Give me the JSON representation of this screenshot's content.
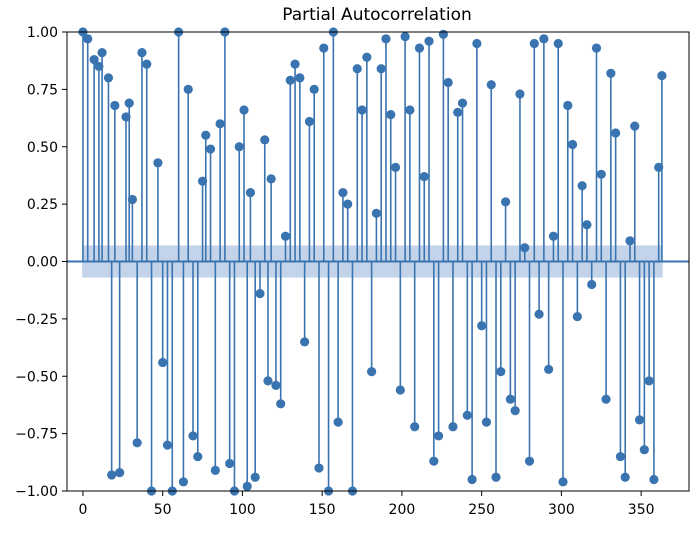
{
  "chart_data": {
    "type": "stem",
    "title": "Partial Autocorrelation",
    "xlabel": "",
    "ylabel": "",
    "xlim": [
      -10,
      380
    ],
    "ylim": [
      -1.0,
      1.0
    ],
    "x_ticks": [
      0,
      50,
      100,
      150,
      200,
      250,
      300,
      350
    ],
    "y_ticks": [
      -1.0,
      -0.75,
      -0.5,
      -0.25,
      0.0,
      0.25,
      0.5,
      0.75,
      1.0
    ],
    "x_tick_labels": [
      "0",
      "50",
      "100",
      "150",
      "200",
      "250",
      "300",
      "350"
    ],
    "y_tick_labels": [
      "−1.00",
      "−0.75",
      "−0.50",
      "−0.25",
      "0.00",
      "0.25",
      "0.50",
      "0.75",
      "1.00"
    ],
    "confidence_band": 0.07,
    "series": [
      {
        "x": [
          0,
          3,
          7,
          10,
          12,
          16,
          18,
          20,
          23,
          27,
          29,
          31,
          34,
          37,
          40,
          43,
          47,
          50,
          53,
          56,
          60,
          63,
          66,
          69,
          72,
          75,
          77,
          80,
          83,
          86,
          89,
          92,
          95,
          98,
          101,
          103,
          105,
          108,
          111,
          114,
          116,
          118,
          121,
          124,
          127,
          130,
          133,
          136,
          139,
          142,
          145,
          148,
          151,
          154,
          157,
          160,
          163,
          166,
          169,
          172,
          175,
          178,
          181,
          184,
          187,
          190,
          193,
          196,
          199,
          202,
          205,
          208,
          211,
          214,
          217,
          220,
          223,
          226,
          229,
          232,
          235,
          238,
          241,
          244,
          247,
          250,
          253,
          256,
          259,
          262,
          265,
          268,
          271,
          274,
          277,
          280,
          283,
          286,
          289,
          292,
          295,
          298,
          301,
          304,
          307,
          310,
          313,
          316,
          319,
          322,
          325,
          328,
          331,
          334,
          337,
          340,
          343,
          346,
          349,
          352,
          355,
          358,
          361,
          363
        ],
        "values": [
          1.0,
          0.97,
          0.88,
          0.85,
          0.91,
          0.8,
          -0.93,
          0.68,
          -0.92,
          0.63,
          0.69,
          0.27,
          -0.79,
          0.91,
          0.86,
          -1.0,
          0.43,
          -0.44,
          -0.8,
          -1.0,
          1.0,
          -0.96,
          0.75,
          -0.76,
          -0.85,
          0.35,
          0.55,
          0.49,
          -0.91,
          0.6,
          1.0,
          -0.88,
          -1.0,
          0.5,
          0.66,
          -0.98,
          0.3,
          -0.94,
          -0.14,
          0.53,
          -0.52,
          0.36,
          -0.54,
          -0.62,
          0.11,
          0.79,
          0.86,
          0.8,
          -0.35,
          0.61,
          0.75,
          -0.9,
          0.93,
          -1.0,
          1.0,
          -0.7,
          0.3,
          0.25,
          -1.0,
          0.84,
          0.66,
          0.89,
          -0.48,
          0.21,
          0.84,
          0.97,
          0.64,
          0.41,
          -0.56,
          0.98,
          0.66,
          -0.72,
          0.93,
          0.37,
          0.96,
          -0.87,
          -0.76,
          0.99,
          0.78,
          -0.72,
          0.65,
          0.69,
          -0.67,
          -0.95,
          0.95,
          -0.28,
          -0.7,
          0.77,
          -0.94,
          -0.48,
          0.26,
          -0.6,
          -0.65,
          0.73,
          0.06,
          -0.87,
          0.95,
          -0.23,
          0.97,
          -0.47,
          0.11,
          0.95,
          -0.96,
          0.68,
          0.51,
          -0.24,
          0.33,
          0.16,
          -0.1,
          0.93,
          0.38,
          -0.6,
          0.82,
          0.56,
          -0.85,
          -0.94,
          0.09,
          0.59,
          -0.69,
          -0.82,
          -0.52,
          -0.95,
          0.41,
          0.81
        ]
      }
    ],
    "colors": {
      "stem": "#3a74b0",
      "band": "#b8cde6",
      "baseline": "#3a74b0"
    },
    "grid": false,
    "legend": "none"
  }
}
